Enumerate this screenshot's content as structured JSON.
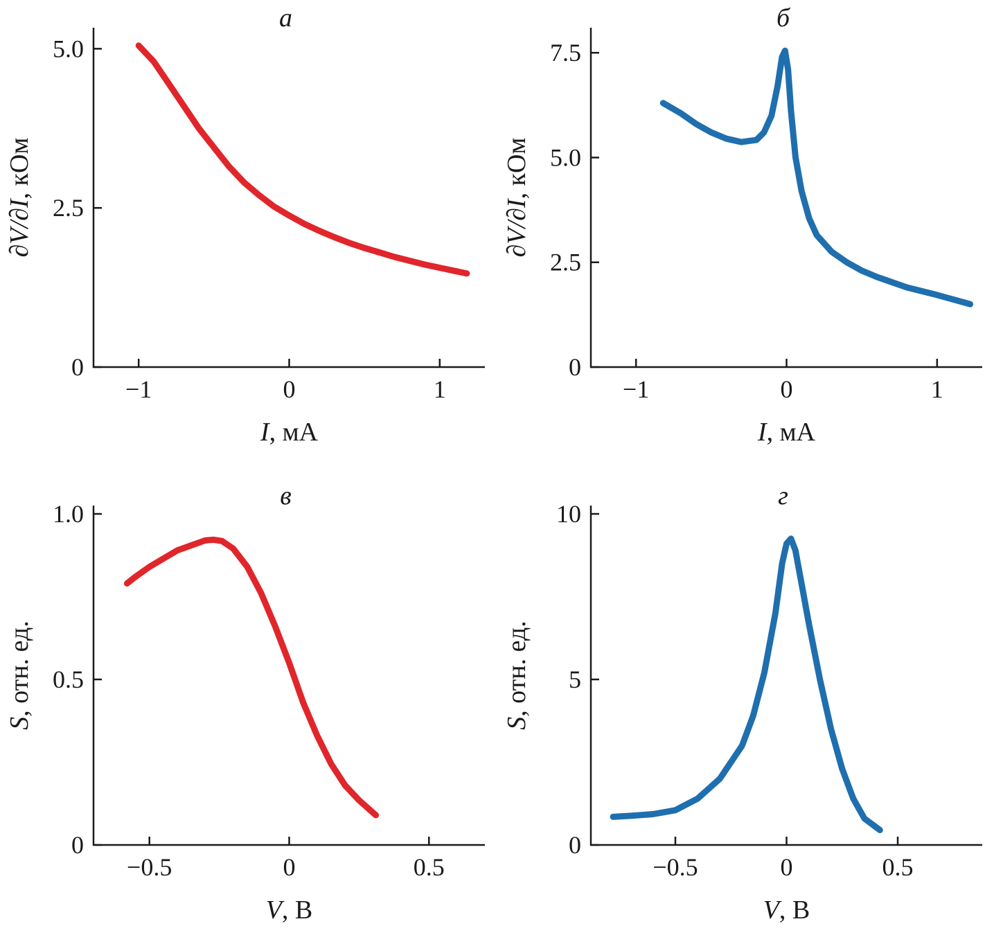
{
  "chart_data": [
    {
      "panel": "а",
      "type": "line",
      "xlabel_var": "I",
      "xlabel_unit": ", мА",
      "ylabel_var": "∂V/∂I",
      "ylabel_unit": ", кОм",
      "xlim": [
        -1.3,
        1.3
      ],
      "ylim": [
        0,
        5.2
      ],
      "xticks": [
        -1,
        0,
        1
      ],
      "xtick_labels": [
        "−1",
        "0",
        "1"
      ],
      "yticks": [
        0,
        2.5,
        5.0
      ],
      "ytick_labels": [
        "0",
        "2.5",
        "5.0"
      ],
      "grid": false,
      "series": [
        {
          "color": "#e0262b",
          "x": [
            -1.0,
            -0.9,
            -0.8,
            -0.7,
            -0.6,
            -0.5,
            -0.4,
            -0.3,
            -0.2,
            -0.1,
            0.0,
            0.1,
            0.2,
            0.3,
            0.4,
            0.5,
            0.6,
            0.7,
            0.8,
            0.9,
            1.0,
            1.1,
            1.18
          ],
          "y": [
            5.05,
            4.8,
            4.45,
            4.1,
            3.75,
            3.45,
            3.15,
            2.9,
            2.7,
            2.52,
            2.38,
            2.25,
            2.14,
            2.04,
            1.95,
            1.87,
            1.8,
            1.73,
            1.67,
            1.61,
            1.56,
            1.51,
            1.47
          ]
        }
      ]
    },
    {
      "panel": "б",
      "type": "line",
      "xlabel_var": "I",
      "xlabel_unit": ", мА",
      "ylabel_var": "∂V/∂I",
      "ylabel_unit": ", кОм",
      "xlim": [
        -1.3,
        1.3
      ],
      "ylim": [
        0,
        7.9
      ],
      "xticks": [
        -1,
        0,
        1
      ],
      "xtick_labels": [
        "−1",
        "0",
        "1"
      ],
      "yticks": [
        0,
        2.5,
        5.0,
        7.5
      ],
      "ytick_labels": [
        "0",
        "2.5",
        "5.0",
        "7.5"
      ],
      "grid": false,
      "series": [
        {
          "color": "#1f6fae",
          "x": [
            -0.82,
            -0.7,
            -0.6,
            -0.5,
            -0.4,
            -0.3,
            -0.2,
            -0.15,
            -0.1,
            -0.06,
            -0.03,
            -0.01,
            0.01,
            0.03,
            0.06,
            0.1,
            0.15,
            0.2,
            0.3,
            0.4,
            0.5,
            0.6,
            0.8,
            1.0,
            1.22
          ],
          "y": [
            6.3,
            6.05,
            5.8,
            5.6,
            5.45,
            5.37,
            5.42,
            5.6,
            6.0,
            6.7,
            7.4,
            7.55,
            7.1,
            6.1,
            5.0,
            4.2,
            3.55,
            3.15,
            2.75,
            2.5,
            2.3,
            2.15,
            1.9,
            1.72,
            1.5
          ]
        }
      ]
    },
    {
      "panel": "в",
      "type": "line",
      "xlabel_var": "V",
      "xlabel_unit": ", В",
      "ylabel_var": "S",
      "ylabel_unit": ", отн. ед.",
      "xlim": [
        -0.7,
        0.7
      ],
      "ylim": [
        0,
        1.0
      ],
      "xticks": [
        -0.5,
        0,
        0.5
      ],
      "xtick_labels": [
        "−0.5",
        "0",
        "0.5"
      ],
      "yticks": [
        0,
        0.5,
        1.0
      ],
      "ytick_labels": [
        "0",
        "0.5",
        "1.0"
      ],
      "grid": false,
      "series": [
        {
          "color": "#e0262b",
          "x": [
            -0.58,
            -0.55,
            -0.5,
            -0.45,
            -0.4,
            -0.35,
            -0.3,
            -0.27,
            -0.24,
            -0.2,
            -0.15,
            -0.1,
            -0.05,
            0.0,
            0.05,
            0.1,
            0.15,
            0.2,
            0.25,
            0.31
          ],
          "y": [
            0.79,
            0.81,
            0.84,
            0.865,
            0.89,
            0.905,
            0.92,
            0.922,
            0.918,
            0.895,
            0.84,
            0.76,
            0.66,
            0.55,
            0.43,
            0.33,
            0.245,
            0.18,
            0.135,
            0.09
          ]
        }
      ]
    },
    {
      "panel": "г",
      "type": "line",
      "xlabel_var": "V",
      "xlabel_unit": ", В",
      "ylabel_var": "S",
      "ylabel_unit": ", отн. ед.",
      "xlim": [
        -0.88,
        0.88
      ],
      "ylim": [
        0,
        10
      ],
      "xticks": [
        -0.5,
        0,
        0.5
      ],
      "xtick_labels": [
        "−0.5",
        "0",
        "0.5"
      ],
      "yticks": [
        0,
        5,
        10
      ],
      "ytick_labels": [
        "0",
        "5",
        "10"
      ],
      "grid": false,
      "series": [
        {
          "color": "#1f6fae",
          "x": [
            -0.78,
            -0.7,
            -0.6,
            -0.5,
            -0.4,
            -0.3,
            -0.2,
            -0.15,
            -0.1,
            -0.05,
            -0.02,
            0.0,
            0.02,
            0.04,
            0.07,
            0.1,
            0.15,
            0.2,
            0.25,
            0.3,
            0.35,
            0.42
          ],
          "y": [
            0.85,
            0.88,
            0.93,
            1.05,
            1.4,
            2.0,
            3.0,
            3.9,
            5.2,
            7.0,
            8.5,
            9.1,
            9.25,
            8.9,
            7.8,
            6.7,
            5.0,
            3.5,
            2.3,
            1.4,
            0.8,
            0.45
          ]
        }
      ]
    }
  ]
}
